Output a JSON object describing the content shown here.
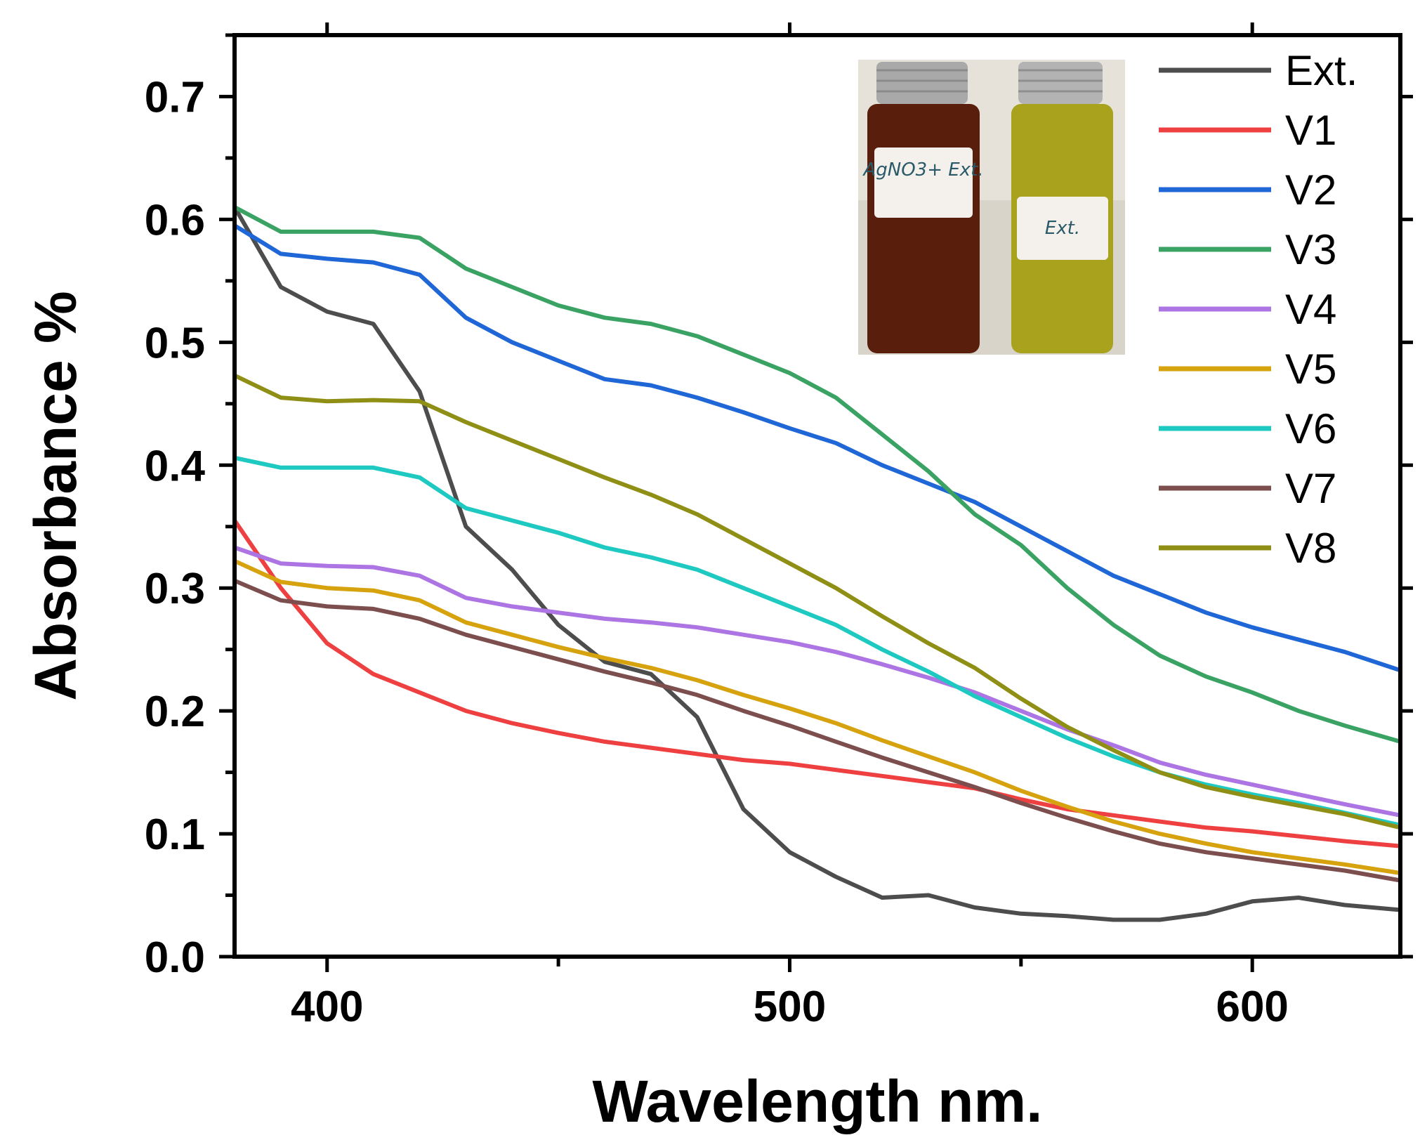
{
  "chart_data": {
    "type": "line",
    "xlabel": "Wavelength nm.",
    "ylabel": "Absorbance  %",
    "xlim": [
      380,
      632
    ],
    "ylim": [
      0,
      0.75
    ],
    "x_ticks": [
      400,
      500,
      600
    ],
    "x_tick_labels": [
      "400",
      "500",
      "600"
    ],
    "y_ticks": [
      0.0,
      0.1,
      0.2,
      0.3,
      0.4,
      0.5,
      0.6,
      0.7
    ],
    "y_tick_labels": [
      "0.0",
      "0.1",
      "0.2",
      "0.3",
      "0.4",
      "0.5",
      "0.6",
      "0.7"
    ],
    "grid": false,
    "legend_position": "top-right",
    "x": [
      380,
      390,
      400,
      410,
      420,
      430,
      440,
      450,
      460,
      470,
      480,
      490,
      500,
      510,
      520,
      530,
      540,
      550,
      560,
      570,
      580,
      590,
      600,
      610,
      620,
      632
    ],
    "series": [
      {
        "name": "Ext.",
        "color": "#4d4d4d",
        "values": [
          0.61,
          0.545,
          0.525,
          0.515,
          0.46,
          0.35,
          0.315,
          0.27,
          0.24,
          0.23,
          0.195,
          0.12,
          0.085,
          0.065,
          0.048,
          0.05,
          0.04,
          0.035,
          0.033,
          0.03,
          0.03,
          0.035,
          0.045,
          0.048,
          0.042,
          0.038
        ]
      },
      {
        "name": "V1",
        "color": "#ee4040",
        "values": [
          0.355,
          0.3,
          0.255,
          0.23,
          0.215,
          0.2,
          0.19,
          0.182,
          0.175,
          0.17,
          0.165,
          0.16,
          0.157,
          0.152,
          0.147,
          0.142,
          0.137,
          0.128,
          0.12,
          0.115,
          0.11,
          0.105,
          0.102,
          0.098,
          0.094,
          0.09
        ]
      },
      {
        "name": "V2",
        "color": "#1f66d6",
        "values": [
          0.595,
          0.572,
          0.568,
          0.565,
          0.555,
          0.52,
          0.5,
          0.485,
          0.47,
          0.465,
          0.455,
          0.443,
          0.43,
          0.418,
          0.4,
          0.385,
          0.37,
          0.35,
          0.33,
          0.31,
          0.295,
          0.28,
          0.268,
          0.258,
          0.248,
          0.233
        ]
      },
      {
        "name": "V3",
        "color": "#3aa364",
        "values": [
          0.61,
          0.59,
          0.59,
          0.59,
          0.585,
          0.56,
          0.545,
          0.53,
          0.52,
          0.515,
          0.505,
          0.49,
          0.475,
          0.455,
          0.425,
          0.395,
          0.36,
          0.335,
          0.3,
          0.27,
          0.245,
          0.228,
          0.215,
          0.2,
          0.188,
          0.175
        ]
      },
      {
        "name": "V4",
        "color": "#ad74e3",
        "values": [
          0.333,
          0.32,
          0.318,
          0.317,
          0.31,
          0.292,
          0.285,
          0.28,
          0.275,
          0.272,
          0.268,
          0.262,
          0.256,
          0.248,
          0.238,
          0.227,
          0.215,
          0.2,
          0.185,
          0.172,
          0.158,
          0.148,
          0.14,
          0.132,
          0.124,
          0.115
        ]
      },
      {
        "name": "V5",
        "color": "#d6a20e",
        "values": [
          0.322,
          0.305,
          0.3,
          0.298,
          0.29,
          0.272,
          0.262,
          0.252,
          0.243,
          0.235,
          0.225,
          0.213,
          0.202,
          0.19,
          0.176,
          0.163,
          0.15,
          0.135,
          0.122,
          0.11,
          0.1,
          0.092,
          0.085,
          0.08,
          0.075,
          0.068
        ]
      },
      {
        "name": "V6",
        "color": "#1ec9c2",
        "values": [
          0.406,
          0.398,
          0.398,
          0.398,
          0.39,
          0.365,
          0.355,
          0.345,
          0.333,
          0.325,
          0.315,
          0.3,
          0.285,
          0.27,
          0.25,
          0.232,
          0.212,
          0.195,
          0.178,
          0.163,
          0.15,
          0.14,
          0.132,
          0.125,
          0.117,
          0.107
        ]
      },
      {
        "name": "V7",
        "color": "#7d4e4e",
        "values": [
          0.306,
          0.29,
          0.285,
          0.283,
          0.275,
          0.262,
          0.252,
          0.242,
          0.232,
          0.223,
          0.213,
          0.2,
          0.188,
          0.175,
          0.162,
          0.15,
          0.138,
          0.125,
          0.113,
          0.102,
          0.092,
          0.085,
          0.08,
          0.075,
          0.07,
          0.062
        ]
      },
      {
        "name": "V8",
        "color": "#8f8f16",
        "values": [
          0.473,
          0.455,
          0.452,
          0.453,
          0.452,
          0.435,
          0.42,
          0.405,
          0.39,
          0.376,
          0.36,
          0.34,
          0.32,
          0.3,
          0.277,
          0.255,
          0.235,
          0.21,
          0.187,
          0.168,
          0.15,
          0.138,
          0.13,
          0.123,
          0.116,
          0.105
        ]
      }
    ],
    "inset": {
      "type": "photo",
      "vial_labels": [
        "AgNO3+ Ext.",
        "Ext."
      ]
    }
  }
}
